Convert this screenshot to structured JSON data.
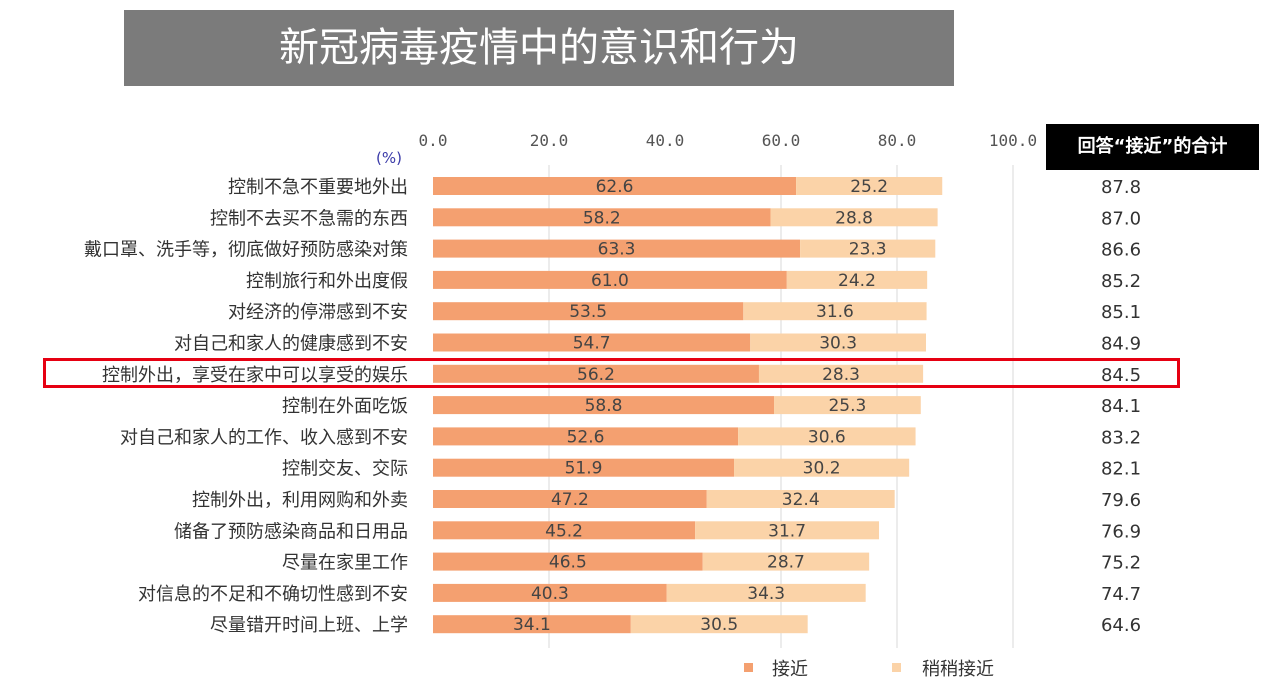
{
  "title": "新冠病毒疫情中的意识和行为",
  "total_header": "回答“接近”的合计",
  "colors": {
    "title_bg": "#7b7b7b",
    "close": "#f4a070",
    "somewhat_close": "#fbd3a8",
    "highlight": "#e60012",
    "axis_text": "#555555",
    "unit_text": "#3a3aa8"
  },
  "chart_data": {
    "type": "bar",
    "orientation": "horizontal",
    "stacked": true,
    "unit": "(%)",
    "xlim": [
      0,
      100
    ],
    "x_ticks": [
      "0.0",
      "20.0",
      "40.0",
      "60.0",
      "80.0",
      "100.0"
    ],
    "grid": "vertical lines at 20, 60, 80, 100",
    "legend_position": "bottom-right",
    "categories": [
      "控制不急不重要地外出",
      "控制不去买不急需的东西",
      "戴口罩、洗手等，彻底做好预防感染对策",
      "控制旅行和外出度假",
      "对经济的停滞感到不安",
      "对自己和家人的健康感到不安",
      "控制外出，享受在家中可以享受的娱乐",
      "控制在外面吃饭",
      "对自己和家人的工作、收入感到不安",
      "控制交友、交际",
      "控制外出，利用网购和外卖",
      "储备了预防感染商品和日用品",
      "尽量在家里工作",
      "对信息的不足和不确切性感到不安",
      "尽量错开时间上班、上学"
    ],
    "series": [
      {
        "name": "接近",
        "values": [
          62.6,
          58.2,
          63.3,
          61.0,
          53.5,
          54.7,
          56.2,
          58.8,
          52.6,
          51.9,
          47.2,
          45.2,
          46.5,
          40.3,
          34.1
        ],
        "labels": [
          "62.6",
          "58.2",
          "63.3",
          "61.0",
          "53.5",
          "54.7",
          "56.2",
          "58.8",
          "52.6",
          "51.9",
          "47.2",
          "45.2",
          "46.5",
          "40.3",
          "34.1"
        ]
      },
      {
        "name": "稍稍接近",
        "values": [
          25.2,
          28.8,
          23.3,
          24.2,
          31.6,
          30.3,
          28.3,
          25.3,
          30.6,
          30.2,
          32.4,
          31.7,
          28.7,
          34.3,
          30.5
        ],
        "labels": [
          "25.2",
          "28.8",
          "23.3",
          "24.2",
          "31.6",
          "30.3",
          "28.3",
          "25.3",
          "30.6",
          "30.2",
          "32.4",
          "31.7",
          "28.7",
          "34.3",
          "30.5"
        ]
      }
    ],
    "totals": [
      "87.8",
      "87.0",
      "86.6",
      "85.2",
      "85.1",
      "84.9",
      "84.5",
      "84.1",
      "83.2",
      "82.1",
      "79.6",
      "76.9",
      "75.2",
      "74.7",
      "64.6"
    ],
    "highlighted_category": "控制外出，享受在家中可以享受的娱乐"
  }
}
